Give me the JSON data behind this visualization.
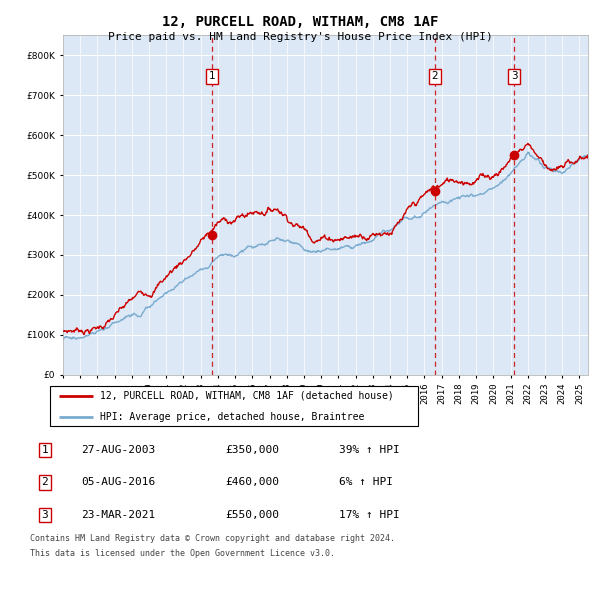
{
  "title": "12, PURCELL ROAD, WITHAM, CM8 1AF",
  "subtitle": "Price paid vs. HM Land Registry's House Price Index (HPI)",
  "legend_line1": "12, PURCELL ROAD, WITHAM, CM8 1AF (detached house)",
  "legend_line2": "HPI: Average price, detached house, Braintree",
  "footer1": "Contains HM Land Registry data © Crown copyright and database right 2024.",
  "footer2": "This data is licensed under the Open Government Licence v3.0.",
  "transactions": [
    {
      "num": 1,
      "date": "27-AUG-2003",
      "price": "£350,000",
      "hpi": "39% ↑ HPI"
    },
    {
      "num": 2,
      "date": "05-AUG-2016",
      "price": "£460,000",
      "hpi": "6% ↑ HPI"
    },
    {
      "num": 3,
      "date": "23-MAR-2021",
      "price": "£550,000",
      "hpi": "17% ↑ HPI"
    }
  ],
  "sale_dates": [
    2003.65,
    2016.59,
    2021.22
  ],
  "sale_prices": [
    350000,
    460000,
    550000
  ],
  "ylim": [
    0,
    850000
  ],
  "yticks": [
    0,
    100000,
    200000,
    300000,
    400000,
    500000,
    600000,
    700000,
    800000
  ],
  "xlim": [
    1995.0,
    2025.5
  ],
  "red_color": "#cc0000",
  "blue_color": "#7aabcf",
  "vline_color": "#cc0000",
  "chart_bg": "#dce8f5",
  "grid_color": "#ffffff"
}
